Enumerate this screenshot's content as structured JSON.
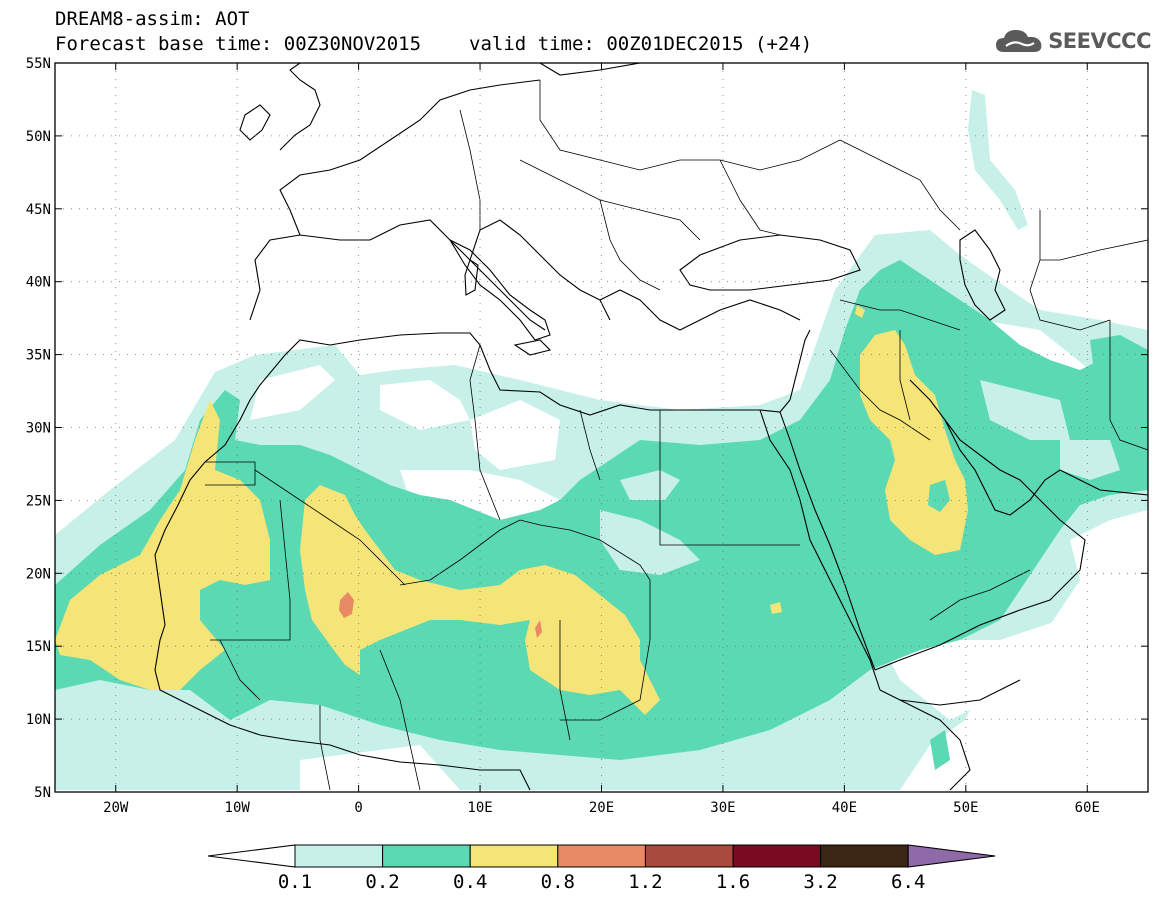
{
  "header": {
    "title": "DREAM8-assim: AOT",
    "base_time": "Forecast base time: 00Z30NOV2015",
    "valid_time": "valid time: 00Z01DEC2015 (+24)",
    "logo_text": "SEEVCCC",
    "logo_icon": "cloud-icon"
  },
  "map": {
    "lon_range": [
      -25,
      65
    ],
    "lat_range": [
      5,
      55
    ],
    "lon_ticks": [
      {
        "value": -20,
        "label": "20W"
      },
      {
        "value": -10,
        "label": "10W"
      },
      {
        "value": 0,
        "label": "0"
      },
      {
        "value": 10,
        "label": "10E"
      },
      {
        "value": 20,
        "label": "20E"
      },
      {
        "value": 30,
        "label": "30E"
      },
      {
        "value": 40,
        "label": "40E"
      },
      {
        "value": 50,
        "label": "50E"
      },
      {
        "value": 60,
        "label": "60E"
      }
    ],
    "lat_ticks": [
      {
        "value": 55,
        "label": "55N"
      },
      {
        "value": 50,
        "label": "50N"
      },
      {
        "value": 45,
        "label": "45N"
      },
      {
        "value": 40,
        "label": "40N"
      },
      {
        "value": 35,
        "label": "35N"
      },
      {
        "value": 30,
        "label": "30N"
      },
      {
        "value": 25,
        "label": "25N"
      },
      {
        "value": 20,
        "label": "20N"
      },
      {
        "value": 15,
        "label": "15N"
      },
      {
        "value": 10,
        "label": "10N"
      },
      {
        "value": 5,
        "label": "5N"
      }
    ],
    "grid": true
  },
  "colorbar": {
    "labels": [
      "0.1",
      "0.2",
      "0.4",
      "0.8",
      "1.2",
      "1.6",
      "3.2",
      "6.4"
    ],
    "colors": [
      "#ffffff",
      "#c6f0e8",
      "#5ad9b2",
      "#f5e478",
      "#e88a66",
      "#a84a3c",
      "#7a0a22",
      "#3b2514",
      "#8e6aa8"
    ]
  }
}
